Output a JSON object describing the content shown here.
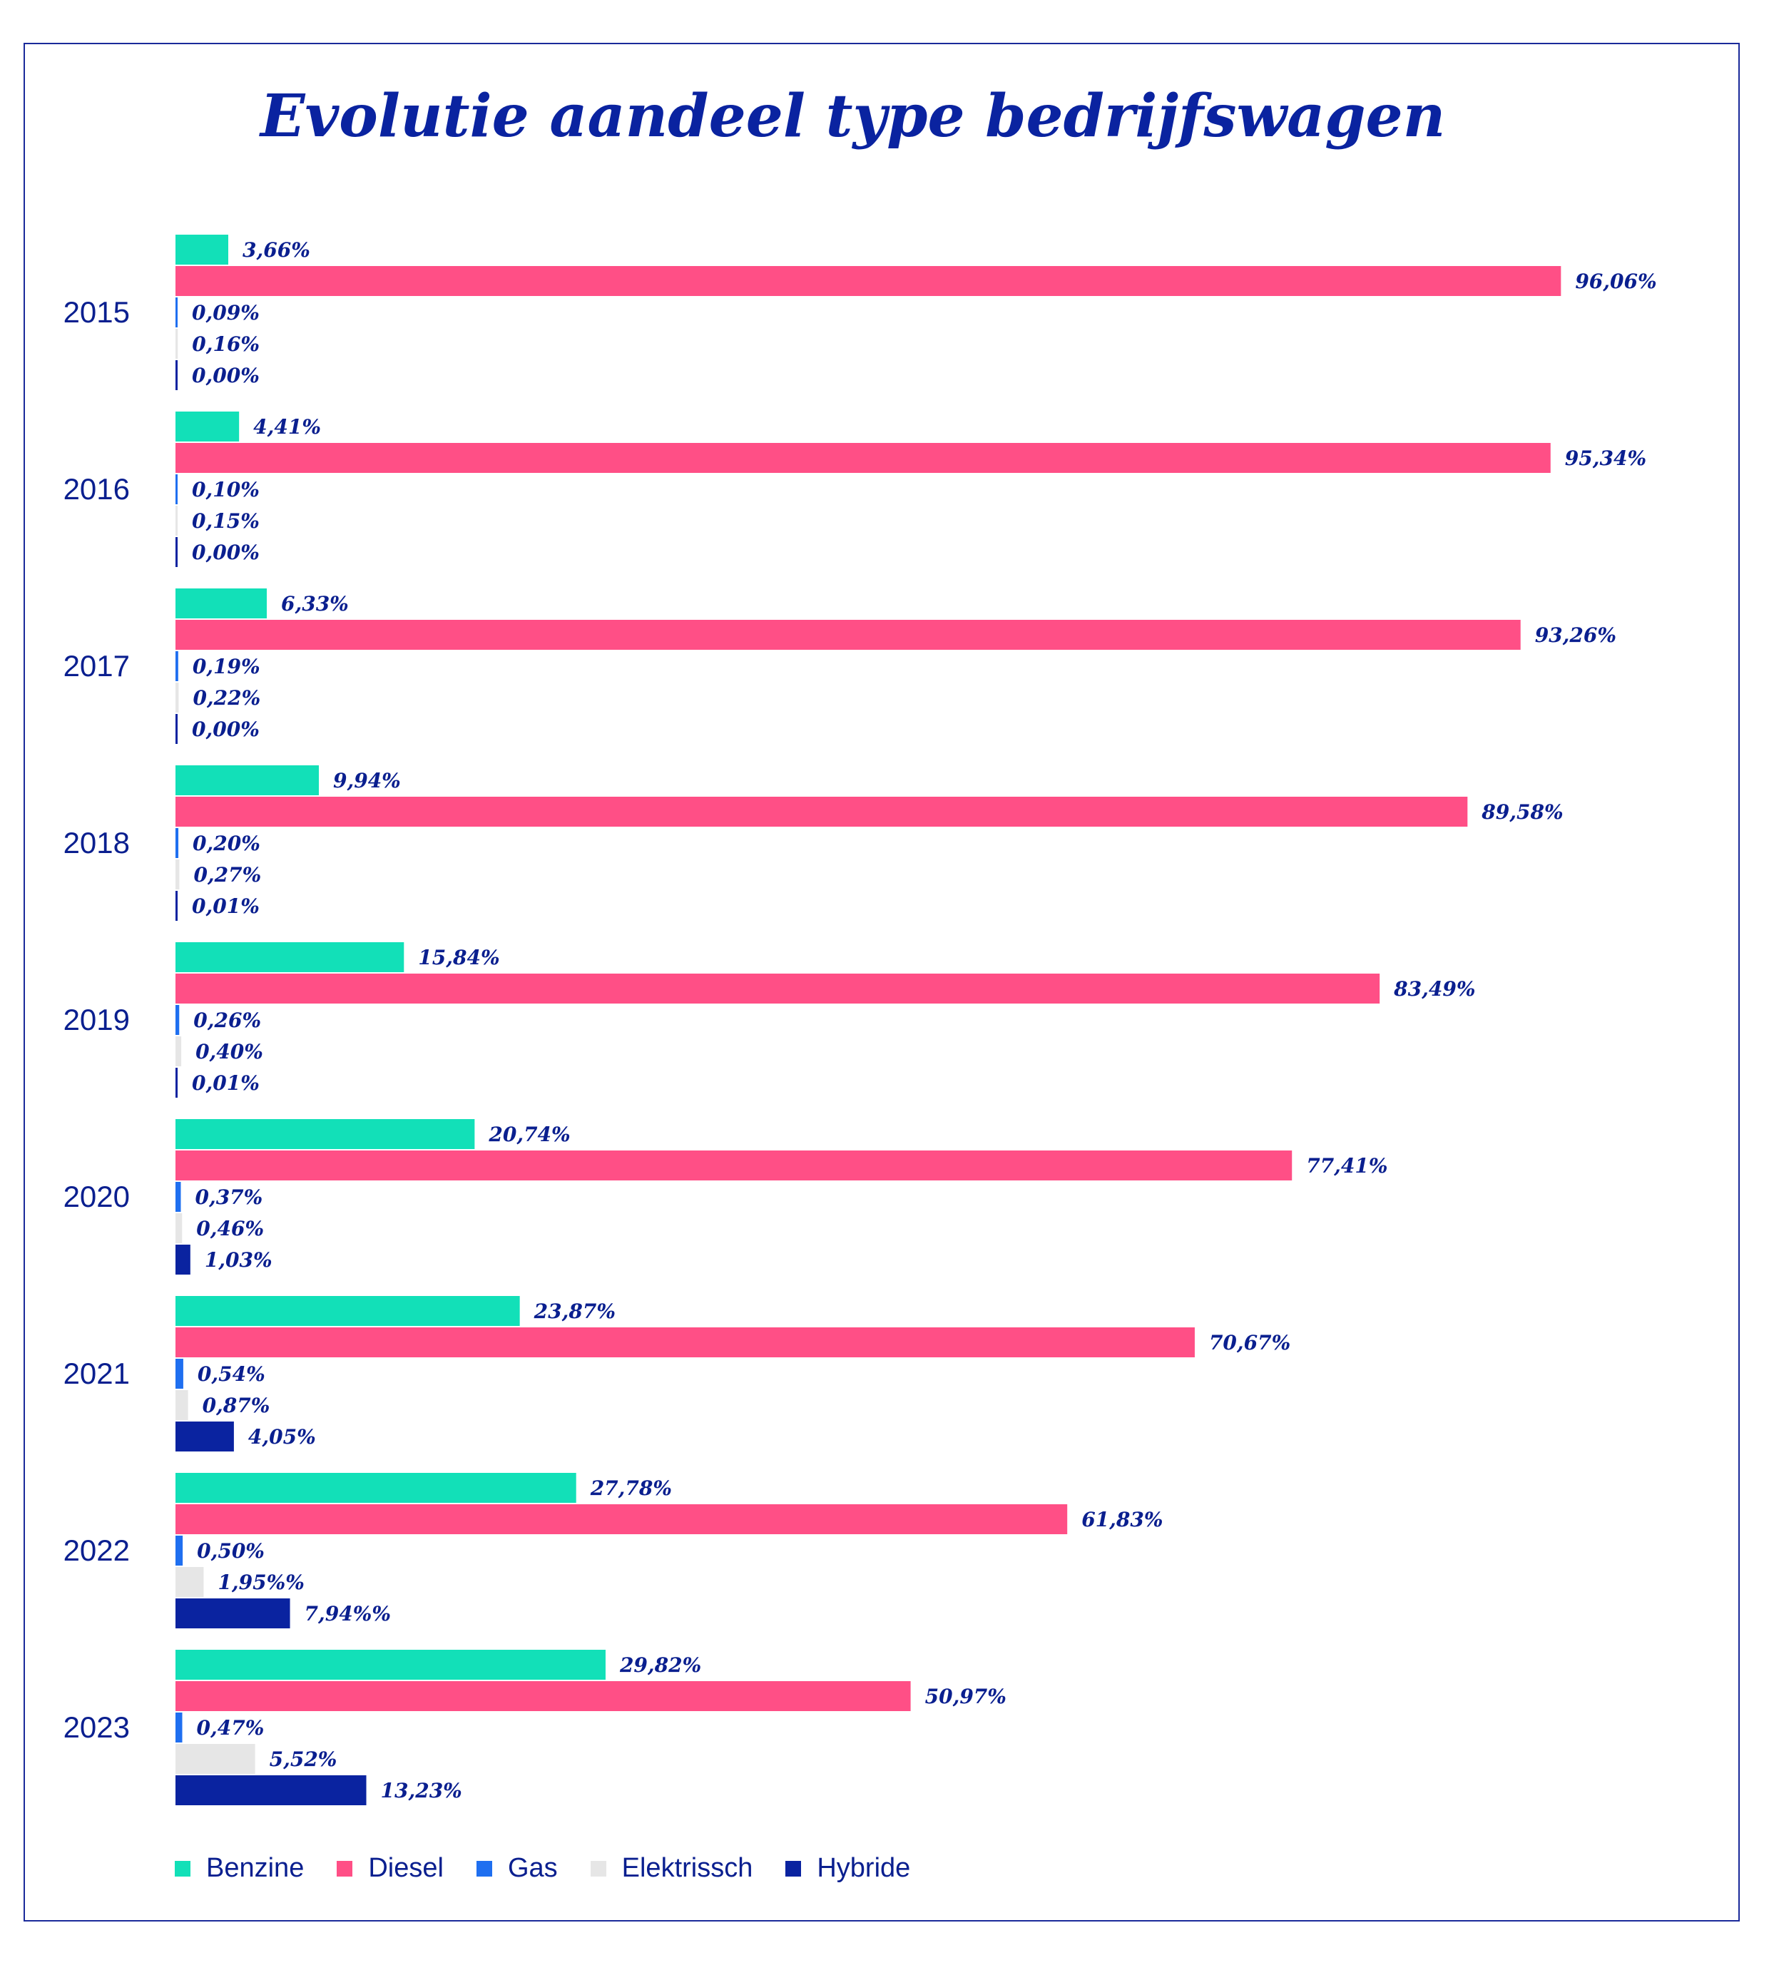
{
  "title": "Evolutie aandeel type bedrijfswagen",
  "colors": {
    "Benzine": "#12e0b8",
    "Diesel": "#ff4f86",
    "Gas": "#1f6ff0",
    "Elektrissch": "#e6e6e6",
    "Hybride": "#0a23a0"
  },
  "chart_data": {
    "type": "bar",
    "orientation": "horizontal",
    "title": "Evolutie aandeel type bedrijfswagen",
    "categories": [
      "2015",
      "2016",
      "2017",
      "2018",
      "2019",
      "2020",
      "2021",
      "2022",
      "2023"
    ],
    "xlim": [
      0,
      100
    ],
    "legend_position": "bottom",
    "grid": false,
    "series": [
      {
        "name": "Benzine",
        "values": [
          3.66,
          4.41,
          6.33,
          9.94,
          15.84,
          20.74,
          23.87,
          27.78,
          29.82
        ],
        "labels": [
          "3,66%",
          "4,41%",
          "6,33%",
          "9,94%",
          "15,84%",
          "20,74%",
          "23,87%",
          "27,78%",
          "29,82%"
        ]
      },
      {
        "name": "Diesel",
        "values": [
          96.06,
          95.34,
          93.26,
          89.58,
          83.49,
          77.41,
          70.67,
          61.83,
          50.97
        ],
        "labels": [
          "96,06%",
          "95,34%",
          "93,26%",
          "89,58%",
          "83,49%",
          "77,41%",
          "70,67%",
          "61,83%",
          "50,97%"
        ]
      },
      {
        "name": "Gas",
        "values": [
          0.09,
          0.1,
          0.19,
          0.2,
          0.26,
          0.37,
          0.54,
          0.5,
          0.47
        ],
        "labels": [
          "0,09%",
          "0,10%",
          "0,19%",
          "0,20%",
          "0,26%",
          "0,37%",
          "0,54%",
          "0,50%",
          "0,47%"
        ]
      },
      {
        "name": "Elektrissch",
        "values": [
          0.16,
          0.15,
          0.22,
          0.27,
          0.4,
          0.46,
          0.87,
          1.95,
          5.52
        ],
        "labels": [
          "0,16%",
          "0,15%",
          "0,22%",
          "0,27%",
          "0,40%",
          "0,46%",
          "0,87%",
          "1,95%%",
          "5,52%"
        ]
      },
      {
        "name": "Hybride",
        "values": [
          0.0,
          0.0,
          0.0,
          0.01,
          0.01,
          1.03,
          4.05,
          7.94,
          13.23
        ],
        "labels": [
          "0,00%",
          "0,00%",
          "0,00%",
          "0,01%",
          "0,01%",
          "1,03%",
          "4,05%",
          "7,94%%",
          "13,23%"
        ]
      }
    ]
  },
  "legend": [
    "Benzine",
    "Diesel",
    "Gas",
    "Elektrissch",
    "Hybride"
  ]
}
